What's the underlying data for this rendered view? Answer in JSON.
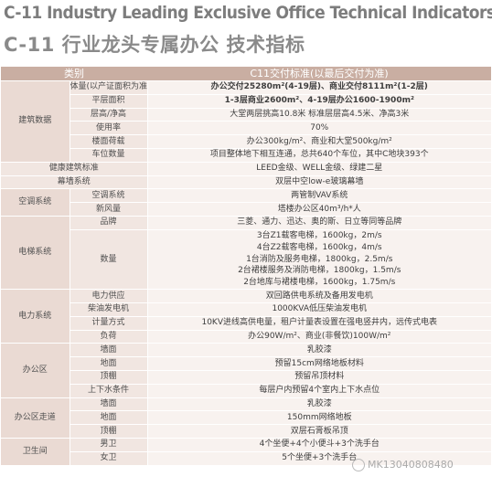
{
  "title_en": "C-11 Industry Leading Exclusive Office Technical Indicators",
  "title_cn": "C-11 行业龙头专属办公 技术指标",
  "table": {
    "header_category": "类别",
    "header_standard": "C11交付标准(以最后交付为准)",
    "sections": {
      "building": {
        "label": "建筑数据",
        "rows": [
          {
            "item": "体量(以产证面积为准)",
            "value": "办公交付25280m²(4-19层)、商业交付8111m²(1-2层)"
          },
          {
            "item": "平层面积",
            "value": "1-3层商业2600m²、4-19层办公1600-1900m²"
          },
          {
            "item": "层高/净高",
            "value": "大堂两层挑高10.8米   标准层层高4.5米、净高3米"
          },
          {
            "item": "使用率",
            "value": "70%"
          },
          {
            "item": "楼面荷载",
            "value": "办公300kg/m²、商业和大堂500kg/m²"
          },
          {
            "item": "车位数量",
            "value": "项目整体地下相互连通，总共640个车位，其中C地块393个"
          }
        ]
      },
      "green": {
        "label": "健康建筑标准",
        "value": "LEED金级、WELL金级、绿建二星"
      },
      "curtain": {
        "label": "幕墙系统",
        "value": "双层中空low-e玻璃幕墙"
      },
      "ac": {
        "label": "空调系统",
        "rows": [
          {
            "item": "空调系统",
            "value": "两管制VAV系统"
          },
          {
            "item": "新风量",
            "value": "塔楼办公区40m³/h*人"
          }
        ]
      },
      "elevator": {
        "label": "电梯系统",
        "brand_item": "品牌",
        "brand_value": "三菱、通力、迅达、奥的斯、日立等同等品牌",
        "qty_item": "数量",
        "qty_lines": [
          "3台Z1载客电梯，1600kg，2m/s",
          "4台Z2载客电梯，1600kg，4m/s",
          "1台消防及服务电梯，1800kg，2.5m/s",
          "2台裙楼服务及消防电梯，1800kg，1.5m/s",
          "2台地库与裙楼电梯，1600kg，1.75m/s"
        ]
      },
      "power": {
        "label": "电力系统",
        "rows": [
          {
            "item": "电力供应",
            "value": "双回路供电系统及备用发电机"
          },
          {
            "item": "柴油发电机",
            "value": "1000KVA低压柴油发电机"
          },
          {
            "item": "计量方式",
            "value": "10KV进线高供电量，租户计量表设置在强电竖井内，远传式电表"
          },
          {
            "item": "负荷",
            "value": "办公90W/m²、商业(非餐饮)100W/m²"
          }
        ]
      },
      "office": {
        "label": "办公区",
        "rows": [
          {
            "item": "墙面",
            "value": "乳胶漆"
          },
          {
            "item": "地面",
            "value": "预留15cm网络地板材料"
          },
          {
            "item": "顶棚",
            "value": "预留吊顶材料"
          },
          {
            "item": "上下水条件",
            "value": "每层户内预留4个室内上下水点位"
          }
        ]
      },
      "corridor": {
        "label": "办公区走道",
        "rows": [
          {
            "item": "墙面",
            "value": "乳胶漆"
          },
          {
            "item": "地面",
            "value": "150mm网络地板"
          },
          {
            "item": "顶棚",
            "value": "双层石膏板吊顶"
          }
        ]
      },
      "toilet": {
        "label": "卫生间",
        "rows": [
          {
            "item": "男卫",
            "value": "4个坐便+4个小便斗+3个洗手台"
          },
          {
            "item": "女卫",
            "value": "5个坐便+3个洗手台"
          }
        ]
      }
    }
  },
  "watermark": "MK13040808480"
}
